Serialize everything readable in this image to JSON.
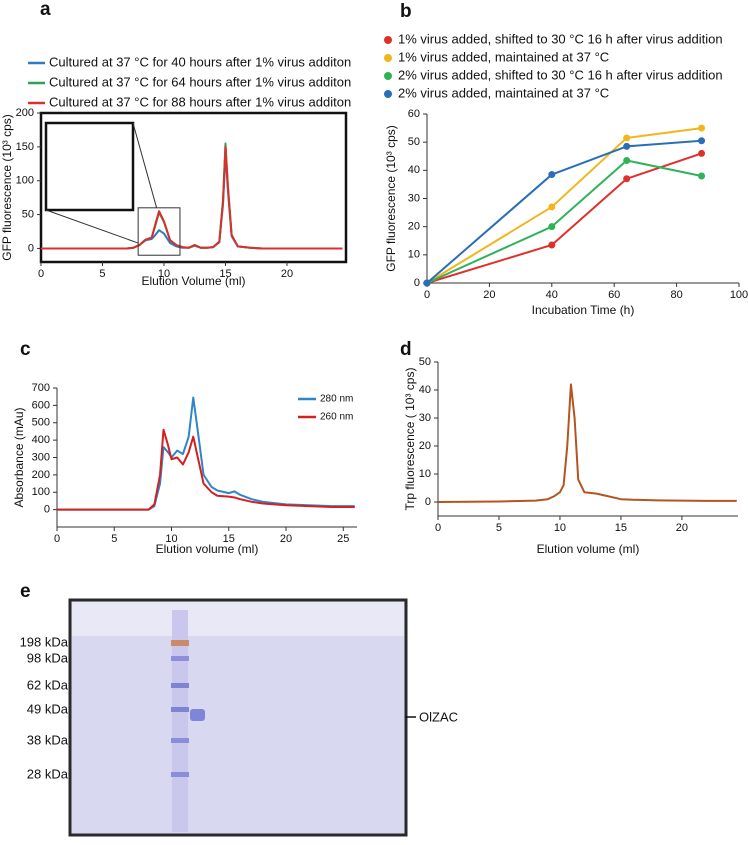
{
  "chart_data": [
    {
      "type": "line",
      "panel": "a",
      "xlabel": "Elution Volume (ml)",
      "ylabel": "GFP fluorescence (10³ cps)",
      "xlim": [
        0,
        24.8
      ],
      "ylim": [
        -20,
        200
      ],
      "xticks": [
        0,
        5,
        10,
        15,
        20
      ],
      "yticks": [
        0,
        50,
        100,
        150,
        200
      ],
      "x": [
        0,
        2,
        4,
        6,
        7,
        7.5,
        8,
        8.5,
        9,
        9.3,
        9.6,
        10,
        10.5,
        11,
        11.5,
        12,
        12.5,
        13,
        13.5,
        14,
        14.5,
        14.8,
        15,
        15.2,
        15.5,
        16,
        17,
        18,
        20,
        22,
        24.5
      ],
      "series": [
        {
          "name": "Cultured at 37 °C for 40 hours after 1% virus additon",
          "color": "#2b7cc4",
          "values": [
            0,
            0,
            0,
            0,
            0,
            1,
            5,
            12,
            14,
            20,
            27,
            22,
            8,
            3,
            1,
            1,
            4,
            1,
            1,
            2,
            9,
            65,
            140,
            85,
            18,
            3,
            1,
            0,
            0,
            0,
            0
          ]
        },
        {
          "name": "Cultured at 37 °C for 64 hours after 1% virus additon",
          "color": "#2ea152",
          "values": [
            0,
            0,
            0,
            0,
            0,
            1,
            5,
            13,
            16,
            34,
            53,
            39,
            12,
            5,
            2,
            1,
            5,
            1,
            1,
            2,
            10,
            72,
            155,
            92,
            20,
            3,
            1,
            0,
            0,
            0,
            0
          ]
        },
        {
          "name": "Cultured at 37 °C for 88 hours after 1% virus additon",
          "color": "#d9302c",
          "values": [
            0,
            0,
            0,
            0,
            0,
            1,
            5,
            13,
            16,
            36,
            55,
            40,
            12,
            5,
            2,
            1,
            5,
            1,
            1,
            2,
            10,
            70,
            150,
            90,
            20,
            3,
            1,
            0,
            0,
            0,
            0
          ]
        }
      ]
    },
    {
      "type": "line",
      "panel": "b",
      "markers": true,
      "xlabel": "Incubation Time (h)",
      "ylabel": "GFP fluorescence (10³ cps)",
      "xlim": [
        0,
        100
      ],
      "ylim": [
        0,
        60
      ],
      "xticks": [
        0,
        20,
        40,
        60,
        80,
        100
      ],
      "yticks": [
        0,
        10,
        20,
        30,
        40,
        50,
        60
      ],
      "x": [
        0,
        40,
        64,
        88
      ],
      "series": [
        {
          "name": "1% virus added, shifted to 30 °C 16 h after virus addition",
          "color": "#e0302c",
          "values": [
            0,
            13.5,
            37,
            46
          ]
        },
        {
          "name": "1% virus added, maintained at 37 °C",
          "color": "#f2b51c",
          "values": [
            0,
            27,
            51.5,
            55
          ]
        },
        {
          "name": "2% virus added, shifted to 30 °C 16 h after virus addition",
          "color": "#2fb35a",
          "values": [
            0,
            20,
            43.5,
            38
          ]
        },
        {
          "name": "2% virus added, maintained at 37 °C",
          "color": "#2a6fb5",
          "values": [
            0,
            38.5,
            48.5,
            50.5
          ]
        }
      ]
    },
    {
      "type": "line",
      "panel": "c",
      "xlabel": "Elution volume (ml)",
      "ylabel": "Absorbance (mAu)",
      "xlim": [
        0,
        26.2
      ],
      "ylim": [
        -100,
        700
      ],
      "xticks": [
        0,
        5,
        10,
        15,
        20,
        25
      ],
      "yticks": [
        0,
        100,
        200,
        300,
        400,
        500,
        600,
        700
      ],
      "x": [
        0,
        5,
        8,
        8.5,
        9,
        9.3,
        9.7,
        10,
        10.5,
        11,
        11.5,
        11.9,
        12.3,
        12.8,
        13.5,
        14,
        15,
        15.5,
        16,
        17,
        18,
        20,
        22,
        24,
        26
      ],
      "series": [
        {
          "name": "280 nm",
          "color": "#2e86c9",
          "values": [
            0,
            0,
            0,
            20,
            150,
            360,
            330,
            300,
            340,
            320,
            420,
            645,
            450,
            200,
            130,
            110,
            95,
            105,
            85,
            60,
            45,
            30,
            25,
            20,
            20
          ]
        },
        {
          "name": "260 nm",
          "color": "#d42020",
          "values": [
            0,
            0,
            0,
            30,
            200,
            460,
            370,
            290,
            300,
            260,
            330,
            420,
            300,
            150,
            100,
            80,
            75,
            70,
            60,
            45,
            35,
            25,
            20,
            15,
            15
          ]
        }
      ]
    },
    {
      "type": "line",
      "panel": "d",
      "xlabel": "Elution volume (ml)",
      "ylabel": "Trp fluorescence ( 10³ cps)",
      "xlim": [
        0,
        24.6
      ],
      "ylim": [
        -5,
        50
      ],
      "xticks": [
        0,
        5,
        10,
        15,
        20
      ],
      "yticks": [
        0,
        10,
        20,
        30,
        40,
        50
      ],
      "x": [
        0,
        5,
        8,
        9,
        9.5,
        10,
        10.3,
        10.6,
        10.9,
        11.2,
        11.5,
        12,
        13,
        14,
        15,
        16,
        18,
        20,
        22,
        24.5
      ],
      "series": [
        {
          "color": "#b5541f",
          "values": [
            0,
            0.2,
            0.5,
            1,
            2,
            3.5,
            6,
            20,
            42,
            30,
            8,
            3.5,
            3,
            2,
            1,
            0.8,
            0.6,
            0.5,
            0.4,
            0.4
          ]
        }
      ]
    }
  ],
  "gel": {
    "panel": "e",
    "markers": [
      "198 kDa",
      "98 kDa",
      "62 kDa",
      "49 kDa",
      "38 kDa",
      "28 kDa"
    ],
    "band_label": "OlZAC"
  }
}
